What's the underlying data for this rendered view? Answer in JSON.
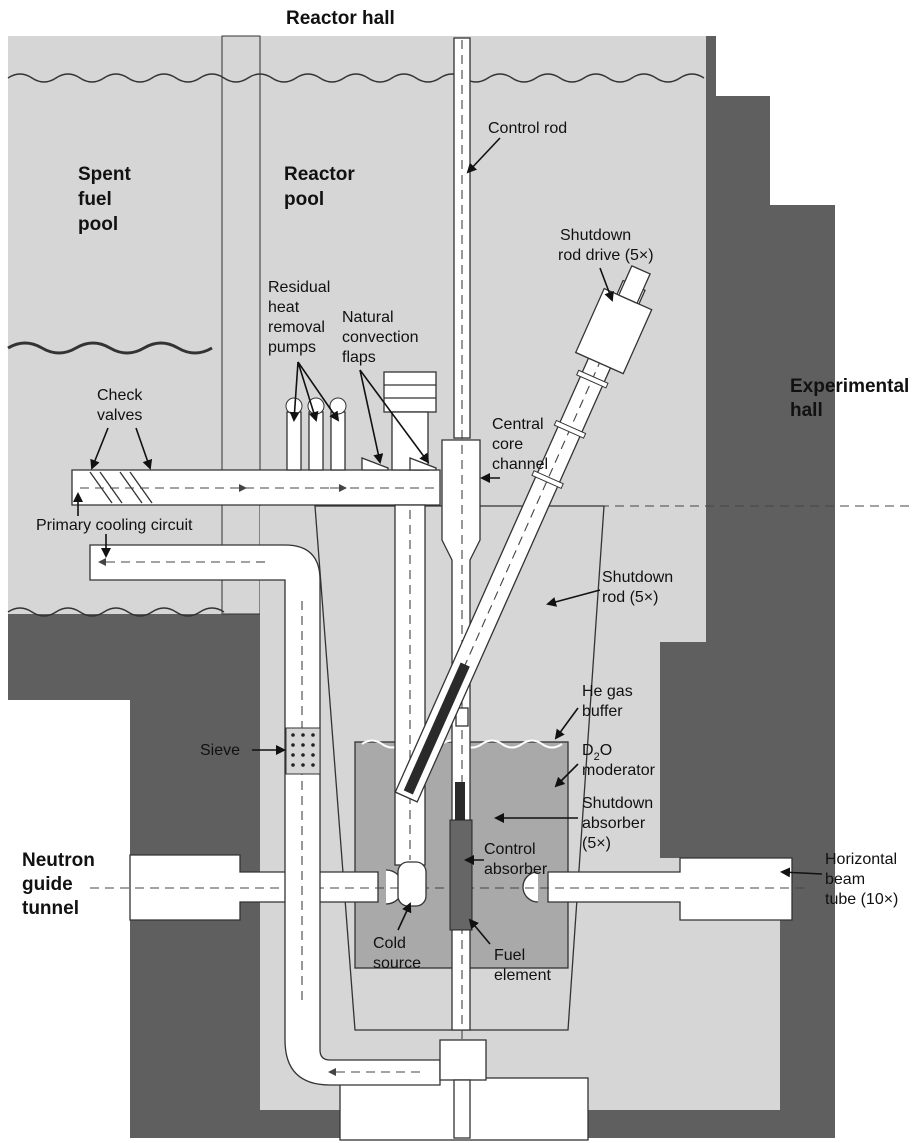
{
  "titles": {
    "reactor_hall": "Reactor hall",
    "experimental_hall": [
      "Experimental",
      "hall"
    ],
    "neutron_guide_tunnel": [
      "Neutron",
      "guide",
      "tunnel"
    ],
    "spent_fuel_pool": [
      "Spent",
      "fuel",
      "pool"
    ],
    "reactor_pool": [
      "Reactor",
      "pool"
    ]
  },
  "labels": {
    "control_rod": "Control rod",
    "shutdown_rod_drive": [
      "Shutdown",
      "rod drive (5×)"
    ],
    "residual_heat_removal_pumps": [
      "Residual",
      "heat",
      "removal",
      "pumps"
    ],
    "natural_convection_flaps": [
      "Natural",
      "convection",
      "flaps"
    ],
    "check_valves": [
      "Check",
      "valves"
    ],
    "central_core_channel": [
      "Central",
      "core",
      "channel"
    ],
    "primary_cooling_circuit": "Primary cooling circuit",
    "shutdown_rod": [
      "Shutdown",
      "rod (5×)"
    ],
    "he_gas_buffer": [
      "He gas",
      "buffer"
    ],
    "d2o_moderator": {
      "d": "D",
      "sub": "2",
      "o": "O",
      "line2": "moderator"
    },
    "shutdown_absorber": [
      "Shutdown",
      "absorber",
      "(5×)"
    ],
    "sieve": "Sieve",
    "control_absorber": [
      "Control",
      "absorber"
    ],
    "horizontal_beam_tube": [
      "Horizontal",
      "beam",
      "tube (10×)"
    ],
    "cold_source": [
      "Cold",
      "source"
    ],
    "fuel_element": [
      "Fuel",
      "element"
    ]
  },
  "colors": {
    "concrete": "#5f5f5f",
    "pool_water": "#d6d6d6",
    "moderator": "#a9a9a9",
    "outline": "#333333",
    "absorber": "#2a2a2a",
    "fuel": "#666666"
  }
}
